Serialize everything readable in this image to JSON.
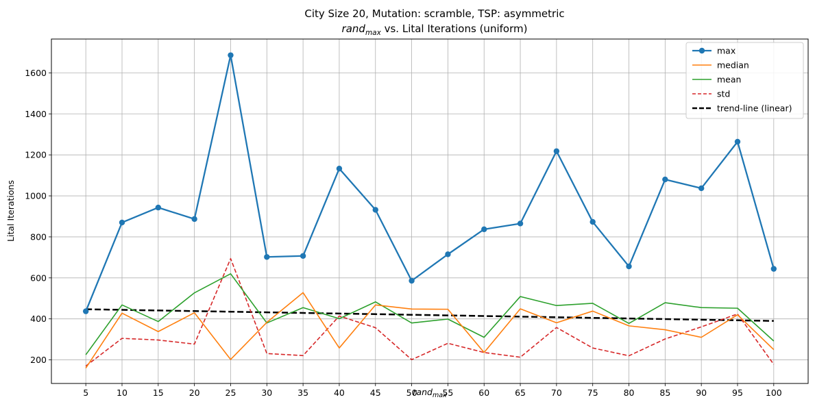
{
  "chart_data": {
    "type": "line",
    "title": "City Size 20, Mutation: scramble, TSP: asymmetric",
    "subtitle": "vs. Lital Iterations (uniform)",
    "subtitle_math": {
      "base": "rand",
      "sub": "max"
    },
    "xlabel_math": {
      "base": "rand",
      "sub": "max"
    },
    "ylabel": "Lital Iterations",
    "x": [
      5,
      10,
      15,
      20,
      25,
      30,
      35,
      40,
      45,
      50,
      55,
      60,
      65,
      70,
      75,
      80,
      85,
      90,
      95,
      100
    ],
    "xticks": [
      "5",
      "10",
      "15",
      "20",
      "25",
      "30",
      "35",
      "40",
      "45",
      "50",
      "55",
      "60",
      "65",
      "70",
      "75",
      "80",
      "85",
      "90",
      "95",
      "100"
    ],
    "xlim": [
      0.25,
      104.75
    ],
    "ylim": [
      85,
      1765
    ],
    "yticks": [
      200,
      400,
      600,
      800,
      1000,
      1200,
      1400,
      1600
    ],
    "yticklabels": [
      "200",
      "400",
      "600",
      "800",
      "1000",
      "1200",
      "1400",
      "1600"
    ],
    "grid": true,
    "legend_position": "top-right",
    "series": [
      {
        "name": "max",
        "color": "#1f77b4",
        "style": "solid-marker",
        "values": [
          437,
          870,
          943,
          887,
          1686,
          702,
          707,
          1133,
          932,
          586,
          715,
          837,
          865,
          1218,
          873,
          656,
          1080,
          1037,
          1264,
          644
        ]
      },
      {
        "name": "median",
        "color": "#ff7f0e",
        "style": "solid",
        "values": [
          160,
          428,
          338,
          430,
          202,
          383,
          528,
          258,
          468,
          448,
          447,
          236,
          449,
          381,
          438,
          366,
          347,
          310,
          420,
          250
        ]
      },
      {
        "name": "mean",
        "color": "#2ca02c",
        "style": "solid",
        "values": [
          225,
          468,
          387,
          527,
          620,
          380,
          455,
          401,
          483,
          380,
          399,
          310,
          509,
          465,
          476,
          378,
          479,
          455,
          452,
          292
        ]
      },
      {
        "name": "std",
        "color": "#d62728",
        "style": "dashed",
        "values": [
          170,
          305,
          297,
          277,
          694,
          231,
          221,
          414,
          357,
          201,
          281,
          236,
          213,
          358,
          258,
          220,
          302,
          361,
          424,
          178
        ]
      },
      {
        "name": "trend-line (linear)",
        "color": "#000000",
        "style": "dashed-bold",
        "values": [
          447,
          444,
          441,
          438,
          435,
          432,
          429,
          426,
          423,
          420,
          417,
          414,
          411,
          408,
          405,
          402,
          399,
          396,
          393,
          390
        ]
      }
    ]
  }
}
